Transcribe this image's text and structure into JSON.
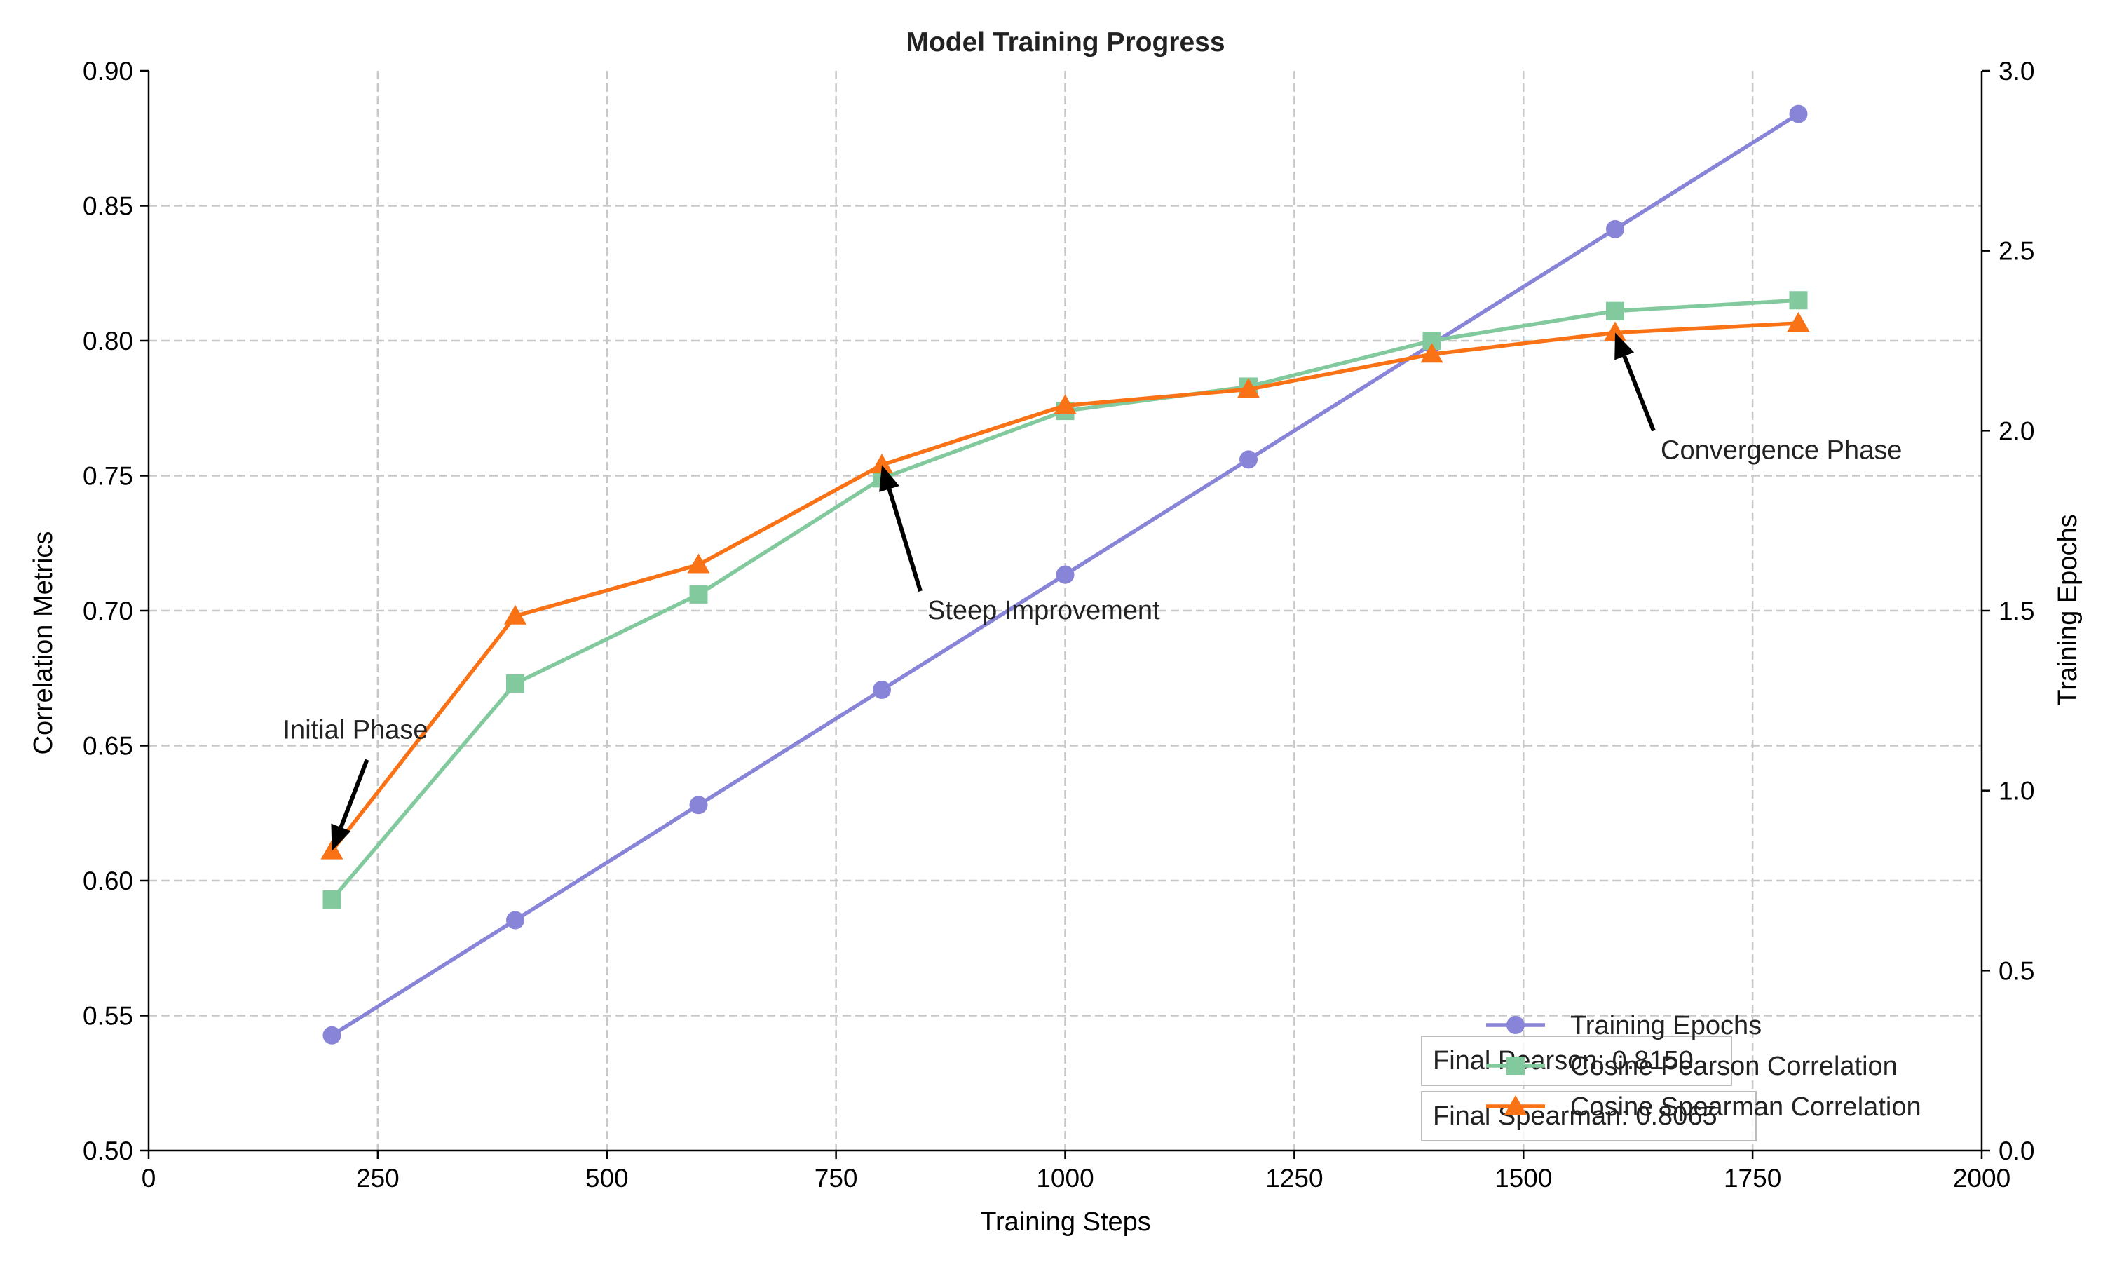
{
  "chart_data": {
    "type": "line",
    "title": "Model Training Progress",
    "xlabel": "Training Steps",
    "ylabel": "Correlation Metrics",
    "y2label": "Training Epochs",
    "xlim": [
      0,
      2000
    ],
    "ylim": [
      0.5,
      0.9
    ],
    "y2lim": [
      0,
      3.0
    ],
    "x_ticks": [
      "0",
      "250",
      "500",
      "750",
      "1000",
      "1250",
      "1500",
      "1750",
      "2000"
    ],
    "y_ticks": [
      "0.50",
      "0.55",
      "0.60",
      "0.65",
      "0.70",
      "0.75",
      "0.80",
      "0.85",
      "0.90"
    ],
    "y2_ticks": [
      "0.0",
      "0.5",
      "1.0",
      "1.5",
      "2.0",
      "2.5",
      "3.0"
    ],
    "grid": true,
    "x": [
      200,
      400,
      600,
      800,
      1000,
      1200,
      1400,
      1600,
      1800
    ],
    "series": [
      {
        "name": "Training Epochs",
        "axis": "right",
        "marker": "circle",
        "color": "#8884d8",
        "values": [
          0.32,
          0.64,
          0.96,
          1.28,
          1.6,
          1.92,
          2.24,
          2.56,
          2.88
        ]
      },
      {
        "name": "Cosine Pearson Correlation",
        "axis": "left",
        "marker": "square",
        "color": "#82ca9d",
        "values": [
          0.593,
          0.673,
          0.706,
          0.749,
          0.774,
          0.783,
          0.8,
          0.811,
          0.815
        ]
      },
      {
        "name": "Cosine Spearman Correlation",
        "axis": "left",
        "marker": "triangle",
        "color": "#f97316",
        "values": [
          0.611,
          0.698,
          0.717,
          0.754,
          0.776,
          0.782,
          0.795,
          0.803,
          0.8065
        ]
      }
    ],
    "annotations": [
      {
        "text": "Initial Phase",
        "target": [
          200,
          0.611
        ]
      },
      {
        "text": "Steep Improvement",
        "target": [
          800,
          0.754
        ]
      },
      {
        "text": "Convergence Phase",
        "target": [
          1600,
          0.803
        ]
      }
    ],
    "text_boxes": [
      "Final Pearson: 0.8150",
      "Final Spearman: 0.8065"
    ],
    "legend_position": "lower-right"
  }
}
